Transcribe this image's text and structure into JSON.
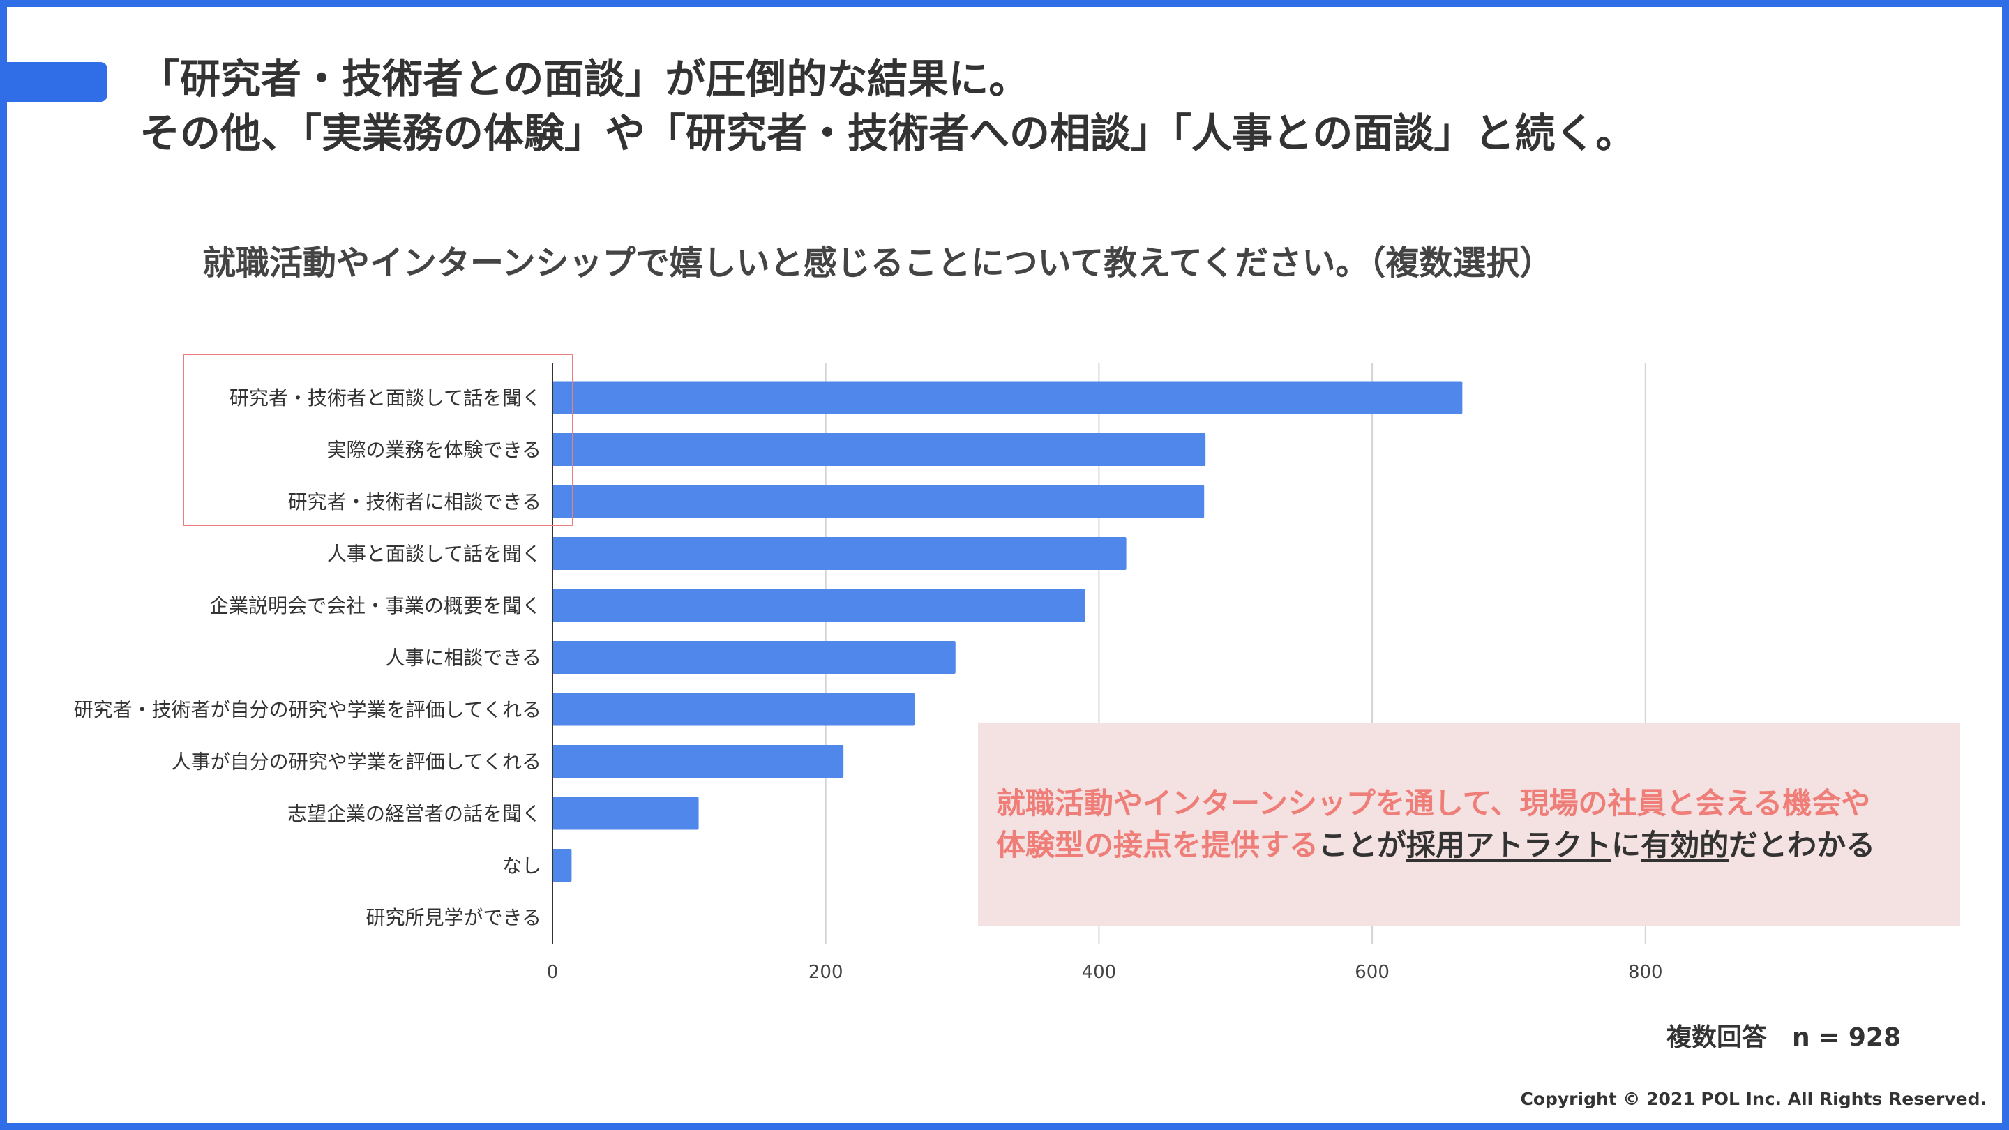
{
  "header": {
    "line1": "「研究者・技術者との面談」が圧倒的な結果に。",
    "line2": "その他、「実業務の体験」や「研究者・技術者への相談」「人事との面談」と続く。"
  },
  "question": "就職活動やインターンシップで嬉しいと感じることについて教えてください。（複数選択）",
  "chart_data": {
    "type": "bar",
    "orientation": "horizontal",
    "categories": [
      "研究者・技術者と面談して話を聞く",
      "実際の業務を体験できる",
      "研究者・技術者に相談できる",
      "人事と面談して話を聞く",
      "企業説明会で会社・事業の概要を聞く",
      "人事に相談できる",
      "研究者・技術者が自分の研究や学業を評価してくれる",
      "人事が自分の研究や学業を評価してくれる",
      "志望企業の経営者の話を聞く",
      "なし",
      "研究所見学ができる"
    ],
    "values": [
      666,
      478,
      477,
      420,
      390,
      295,
      265,
      213,
      107,
      14,
      0
    ],
    "xlim": [
      0,
      1000
    ],
    "xticks": [
      0,
      200,
      400,
      600,
      800
    ],
    "xticklabels": [
      "0",
      "200",
      "400",
      "600",
      "800"
    ],
    "title": "",
    "xlabel": "",
    "ylabel": "",
    "grid": true,
    "bar_color": "#4f87eb",
    "highlighted_categories": [
      0,
      1,
      2
    ]
  },
  "callout": {
    "pink_part1": "就職活動やインターンシップを通して、現場の社員と会える機会や",
    "pink_part2": "体験型の接点を提供する",
    "dark_part1": "ことが",
    "underlined": "採用アトラクト",
    "dark_part2": "に",
    "underlined2": "有効的",
    "dark_part3": "だとわかる"
  },
  "sample_label": "複数回答",
  "sample_size": "n = 928",
  "copyright": "Copyright © 2021 POL Inc. All Rights Reserved.",
  "colors": {
    "frame": "#2f6ee6",
    "bar": "#4f87eb",
    "highlight_border": "#ea7f7f",
    "callout_bg": "#f4e1e2",
    "callout_pink_text": "#ef7d78"
  }
}
